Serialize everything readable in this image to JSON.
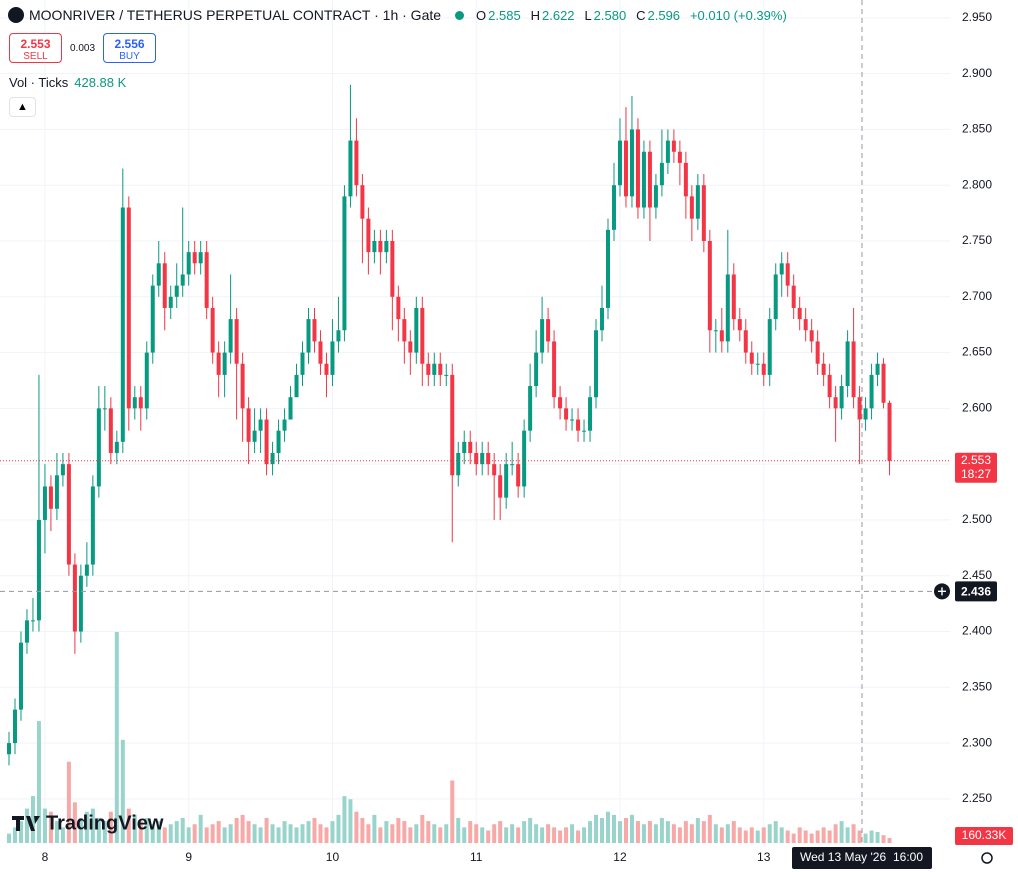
{
  "header": {
    "symbol": "MOONRIVER / TETHERUS PERPETUAL CONTRACT · 1h · Gate",
    "ohlc": [
      {
        "label": "O",
        "value": "2.585"
      },
      {
        "label": "H",
        "value": "2.622"
      },
      {
        "label": "L",
        "value": "2.580"
      },
      {
        "label": "C",
        "value": "2.596"
      }
    ],
    "change": "+0.010 (+0.39%)"
  },
  "trade": {
    "sell_price": "2.553",
    "sell": "SELL",
    "spread": "0.003",
    "buy_price": "2.556",
    "buy": "BUY"
  },
  "indicator": {
    "name": "Vol · Ticks",
    "value": "428.88 K"
  },
  "brand": "TradingView",
  "chart_data": {
    "type": "candlestick",
    "categories": [
      null,
      null,
      null,
      null,
      null,
      null,
      "8",
      null,
      null,
      null,
      null,
      null,
      null,
      null,
      null,
      null,
      null,
      null,
      null,
      null,
      null,
      null,
      null,
      null,
      null,
      null,
      null,
      null,
      null,
      null,
      "9",
      null,
      null,
      null,
      null,
      null,
      null,
      null,
      null,
      null,
      null,
      null,
      null,
      null,
      null,
      null,
      null,
      null,
      null,
      null,
      null,
      null,
      null,
      null,
      "10",
      null,
      null,
      null,
      null,
      null,
      null,
      null,
      null,
      null,
      null,
      null,
      null,
      null,
      null,
      null,
      null,
      null,
      null,
      null,
      null,
      null,
      null,
      null,
      "11",
      null,
      null,
      null,
      null,
      null,
      null,
      null,
      null,
      null,
      null,
      null,
      null,
      null,
      null,
      null,
      null,
      null,
      null,
      null,
      null,
      null,
      null,
      null,
      "12",
      null,
      null,
      null,
      null,
      null,
      null,
      null,
      null,
      null,
      null,
      null,
      null,
      null,
      null,
      null,
      null,
      null,
      null,
      null,
      null,
      null,
      null,
      null,
      "13",
      null,
      null,
      null,
      null,
      null,
      null,
      null,
      null,
      null,
      null,
      null,
      null,
      null,
      null,
      null,
      null,
      null,
      null,
      null,
      null,
      null
    ],
    "open": [
      2.29,
      2.3,
      2.33,
      2.39,
      2.41,
      2.41,
      2.5,
      2.53,
      2.51,
      2.54,
      2.55,
      2.46,
      2.4,
      2.45,
      2.46,
      2.53,
      2.6,
      2.6,
      2.56,
      2.57,
      2.78,
      2.6,
      2.61,
      2.6,
      2.65,
      2.71,
      2.73,
      2.69,
      2.7,
      2.71,
      2.72,
      2.74,
      2.73,
      2.74,
      2.69,
      2.65,
      2.63,
      2.65,
      2.68,
      2.64,
      2.6,
      2.57,
      2.58,
      2.59,
      2.55,
      2.56,
      2.58,
      2.59,
      2.61,
      2.63,
      2.65,
      2.68,
      2.66,
      2.64,
      2.63,
      2.66,
      2.67,
      2.79,
      2.84,
      2.8,
      2.77,
      2.74,
      2.75,
      2.74,
      2.75,
      2.7,
      2.68,
      2.66,
      2.65,
      2.69,
      2.64,
      2.63,
      2.64,
      2.63,
      2.63,
      2.54,
      2.56,
      2.57,
      2.56,
      2.55,
      2.56,
      2.55,
      2.54,
      2.52,
      2.55,
      2.55,
      2.53,
      2.58,
      2.62,
      2.65,
      2.68,
      2.66,
      2.61,
      2.6,
      2.59,
      2.59,
      2.58,
      2.58,
      2.61,
      2.67,
      2.69,
      2.76,
      2.8,
      2.84,
      2.79,
      2.85,
      2.78,
      2.83,
      2.78,
      2.8,
      2.82,
      2.84,
      2.83,
      2.82,
      2.79,
      2.77,
      2.8,
      2.75,
      2.67,
      2.67,
      2.66,
      2.72,
      2.68,
      2.67,
      2.65,
      2.64,
      2.64,
      2.63,
      2.68,
      2.72,
      2.73,
      2.71,
      2.69,
      2.68,
      2.67,
      2.66,
      2.64,
      2.63,
      2.61,
      2.6,
      2.62,
      2.66,
      2.61,
      2.59,
      2.6,
      2.63,
      2.64,
      2.605
    ],
    "high": [
      2.31,
      2.34,
      2.4,
      2.42,
      2.43,
      2.63,
      2.55,
      2.54,
      2.56,
      2.56,
      2.56,
      2.47,
      2.46,
      2.48,
      2.54,
      2.62,
      2.62,
      2.61,
      2.58,
      2.815,
      2.79,
      2.62,
      2.62,
      2.66,
      2.72,
      2.75,
      2.74,
      2.71,
      2.73,
      2.78,
      2.75,
      2.75,
      2.75,
      2.75,
      2.7,
      2.66,
      2.66,
      2.72,
      2.69,
      2.65,
      2.61,
      2.6,
      2.6,
      2.6,
      2.57,
      2.59,
      2.6,
      2.62,
      2.64,
      2.66,
      2.69,
      2.69,
      2.67,
      2.65,
      2.68,
      2.7,
      2.8,
      2.89,
      2.86,
      2.81,
      2.78,
      2.76,
      2.76,
      2.76,
      2.76,
      2.71,
      2.69,
      2.67,
      2.7,
      2.7,
      2.65,
      2.65,
      2.65,
      2.64,
      2.64,
      2.57,
      2.58,
      2.58,
      2.57,
      2.57,
      2.57,
      2.56,
      2.55,
      2.56,
      2.57,
      2.56,
      2.59,
      2.64,
      2.67,
      2.7,
      2.69,
      2.67,
      2.62,
      2.61,
      2.6,
      2.6,
      2.59,
      2.62,
      2.68,
      2.71,
      2.77,
      2.82,
      2.86,
      2.87,
      2.88,
      2.86,
      2.84,
      2.84,
      2.81,
      2.85,
      2.85,
      2.85,
      2.84,
      2.83,
      2.8,
      2.81,
      2.81,
      2.76,
      2.68,
      2.69,
      2.76,
      2.73,
      2.69,
      2.68,
      2.66,
      2.65,
      2.65,
      2.69,
      2.73,
      2.74,
      2.74,
      2.72,
      2.7,
      2.69,
      2.68,
      2.67,
      2.65,
      2.64,
      2.62,
      2.63,
      2.67,
      2.69,
      2.62,
      2.61,
      2.64,
      2.65,
      2.645,
      2.607
    ],
    "low": [
      2.28,
      2.29,
      2.32,
      2.38,
      2.4,
      2.4,
      2.47,
      2.49,
      2.5,
      2.53,
      2.45,
      2.38,
      2.39,
      2.44,
      2.45,
      2.52,
      2.58,
      2.55,
      2.55,
      2.56,
      2.58,
      2.59,
      2.58,
      2.59,
      2.64,
      2.7,
      2.67,
      2.68,
      2.69,
      2.7,
      2.71,
      2.72,
      2.72,
      2.68,
      2.64,
      2.61,
      2.61,
      2.64,
      2.59,
      2.57,
      2.55,
      2.56,
      2.56,
      2.54,
      2.54,
      2.55,
      2.57,
      2.59,
      2.61,
      2.62,
      2.64,
      2.65,
      2.63,
      2.61,
      2.62,
      2.65,
      2.66,
      2.78,
      2.79,
      2.73,
      2.72,
      2.73,
      2.72,
      2.73,
      2.67,
      2.66,
      2.64,
      2.63,
      2.64,
      2.62,
      2.62,
      2.62,
      2.62,
      2.62,
      2.48,
      2.53,
      2.55,
      2.55,
      2.54,
      2.54,
      2.54,
      2.5,
      2.5,
      2.51,
      2.54,
      2.52,
      2.52,
      2.57,
      2.61,
      2.64,
      2.65,
      2.6,
      2.59,
      2.58,
      2.58,
      2.57,
      2.57,
      2.57,
      2.6,
      2.66,
      2.68,
      2.75,
      2.79,
      2.78,
      2.78,
      2.77,
      2.77,
      2.75,
      2.77,
      2.79,
      2.81,
      2.82,
      2.8,
      2.77,
      2.75,
      2.76,
      2.74,
      2.65,
      2.65,
      2.65,
      2.65,
      2.67,
      2.66,
      2.64,
      2.63,
      2.63,
      2.62,
      2.62,
      2.67,
      2.7,
      2.7,
      2.68,
      2.67,
      2.66,
      2.65,
      2.63,
      2.62,
      2.6,
      2.57,
      2.59,
      2.61,
      2.6,
      2.55,
      2.58,
      2.59,
      2.62,
      2.6,
      2.54
    ],
    "close": [
      2.3,
      2.33,
      2.39,
      2.41,
      2.41,
      2.5,
      2.53,
      2.51,
      2.54,
      2.55,
      2.46,
      2.4,
      2.45,
      2.46,
      2.53,
      2.6,
      2.6,
      2.56,
      2.57,
      2.78,
      2.6,
      2.61,
      2.6,
      2.65,
      2.71,
      2.73,
      2.69,
      2.7,
      2.71,
      2.72,
      2.74,
      2.73,
      2.74,
      2.69,
      2.65,
      2.63,
      2.65,
      2.68,
      2.64,
      2.6,
      2.57,
      2.58,
      2.59,
      2.55,
      2.56,
      2.58,
      2.59,
      2.61,
      2.63,
      2.65,
      2.68,
      2.66,
      2.64,
      2.63,
      2.66,
      2.67,
      2.79,
      2.84,
      2.8,
      2.77,
      2.74,
      2.75,
      2.74,
      2.75,
      2.7,
      2.68,
      2.66,
      2.65,
      2.69,
      2.64,
      2.63,
      2.64,
      2.63,
      2.63,
      2.54,
      2.56,
      2.57,
      2.56,
      2.55,
      2.56,
      2.55,
      2.54,
      2.52,
      2.55,
      2.55,
      2.53,
      2.58,
      2.62,
      2.65,
      2.68,
      2.66,
      2.61,
      2.6,
      2.59,
      2.59,
      2.58,
      2.58,
      2.61,
      2.67,
      2.69,
      2.76,
      2.8,
      2.84,
      2.79,
      2.85,
      2.78,
      2.83,
      2.78,
      2.8,
      2.82,
      2.84,
      2.83,
      2.82,
      2.79,
      2.77,
      2.8,
      2.75,
      2.67,
      2.67,
      2.66,
      2.72,
      2.68,
      2.67,
      2.65,
      2.64,
      2.64,
      2.63,
      2.68,
      2.72,
      2.73,
      2.71,
      2.69,
      2.68,
      2.67,
      2.66,
      2.64,
      2.63,
      2.61,
      2.6,
      2.62,
      2.66,
      2.61,
      2.59,
      2.6,
      2.63,
      2.64,
      2.605,
      2.553
    ],
    "volume": [
      300000,
      500000,
      700000,
      1100000,
      1500000,
      3900000,
      1100000,
      1000000,
      700000,
      500000,
      2600000,
      1300000,
      800000,
      1000000,
      1100000,
      800000,
      700000,
      1000000,
      6750000,
      3300000,
      1100000,
      900000,
      700000,
      800000,
      600000,
      700000,
      500000,
      600000,
      700000,
      800000,
      500000,
      600000,
      900000,
      500000,
      600000,
      700000,
      500000,
      600000,
      800000,
      900000,
      700000,
      600000,
      500000,
      800000,
      600000,
      500000,
      700000,
      600000,
      500000,
      600000,
      700000,
      800000,
      600000,
      500000,
      700000,
      900000,
      1500000,
      1400000,
      1000000,
      800000,
      600000,
      900000,
      500000,
      700000,
      600000,
      800000,
      700000,
      500000,
      600000,
      900000,
      700000,
      600000,
      500000,
      600000,
      2000000,
      800000,
      500000,
      700000,
      600000,
      500000,
      400000,
      600000,
      700000,
      500000,
      600000,
      500000,
      700000,
      800000,
      600000,
      500000,
      600000,
      500000,
      400000,
      500000,
      600000,
      400000,
      500000,
      700000,
      900000,
      800000,
      1000000,
      900000,
      700000,
      800000,
      900000,
      700000,
      600000,
      700000,
      600000,
      800000,
      700000,
      600000,
      500000,
      700000,
      600000,
      800000,
      700000,
      900000,
      600000,
      500000,
      600000,
      700000,
      500000,
      400000,
      500000,
      400000,
      500000,
      600000,
      700000,
      500000,
      400000,
      300000,
      500000,
      400000,
      300000,
      400000,
      500000,
      400000,
      600000,
      700000,
      500000,
      600000,
      400000,
      300000,
      400000,
      350000,
      250000,
      160330
    ],
    "ylim": [
      2.21,
      2.966
    ],
    "yticks": [
      {
        "value": 2.25,
        "label": "2.250"
      },
      {
        "value": 2.3,
        "label": "2.300"
      },
      {
        "value": 2.35,
        "label": "2.350"
      },
      {
        "value": 2.4,
        "label": "2.400"
      },
      {
        "value": 2.45,
        "label": "2.450"
      },
      {
        "value": 2.5,
        "label": "2.500"
      },
      {
        "value": 2.55,
        "label": "2.550"
      },
      {
        "value": 2.6,
        "label": "2.600"
      },
      {
        "value": 2.65,
        "label": "2.650"
      },
      {
        "value": 2.7,
        "label": "2.700"
      },
      {
        "value": 2.75,
        "label": "2.750"
      },
      {
        "value": 2.8,
        "label": "2.800"
      },
      {
        "value": 2.85,
        "label": "2.850"
      },
      {
        "value": 2.9,
        "label": "2.900"
      },
      {
        "value": 2.95,
        "label": "2.950"
      }
    ],
    "grid": true,
    "up_color": "#089981",
    "down_color": "#f23645",
    "volume_up_color": "#99d4cc",
    "volume_down_color": "#f7a9a7",
    "countdown": "18:27",
    "volume_tag": "160.33K",
    "crosshair": {
      "price": 2.436,
      "date": "Wed 13 May '26",
      "time": "16:00"
    }
  }
}
